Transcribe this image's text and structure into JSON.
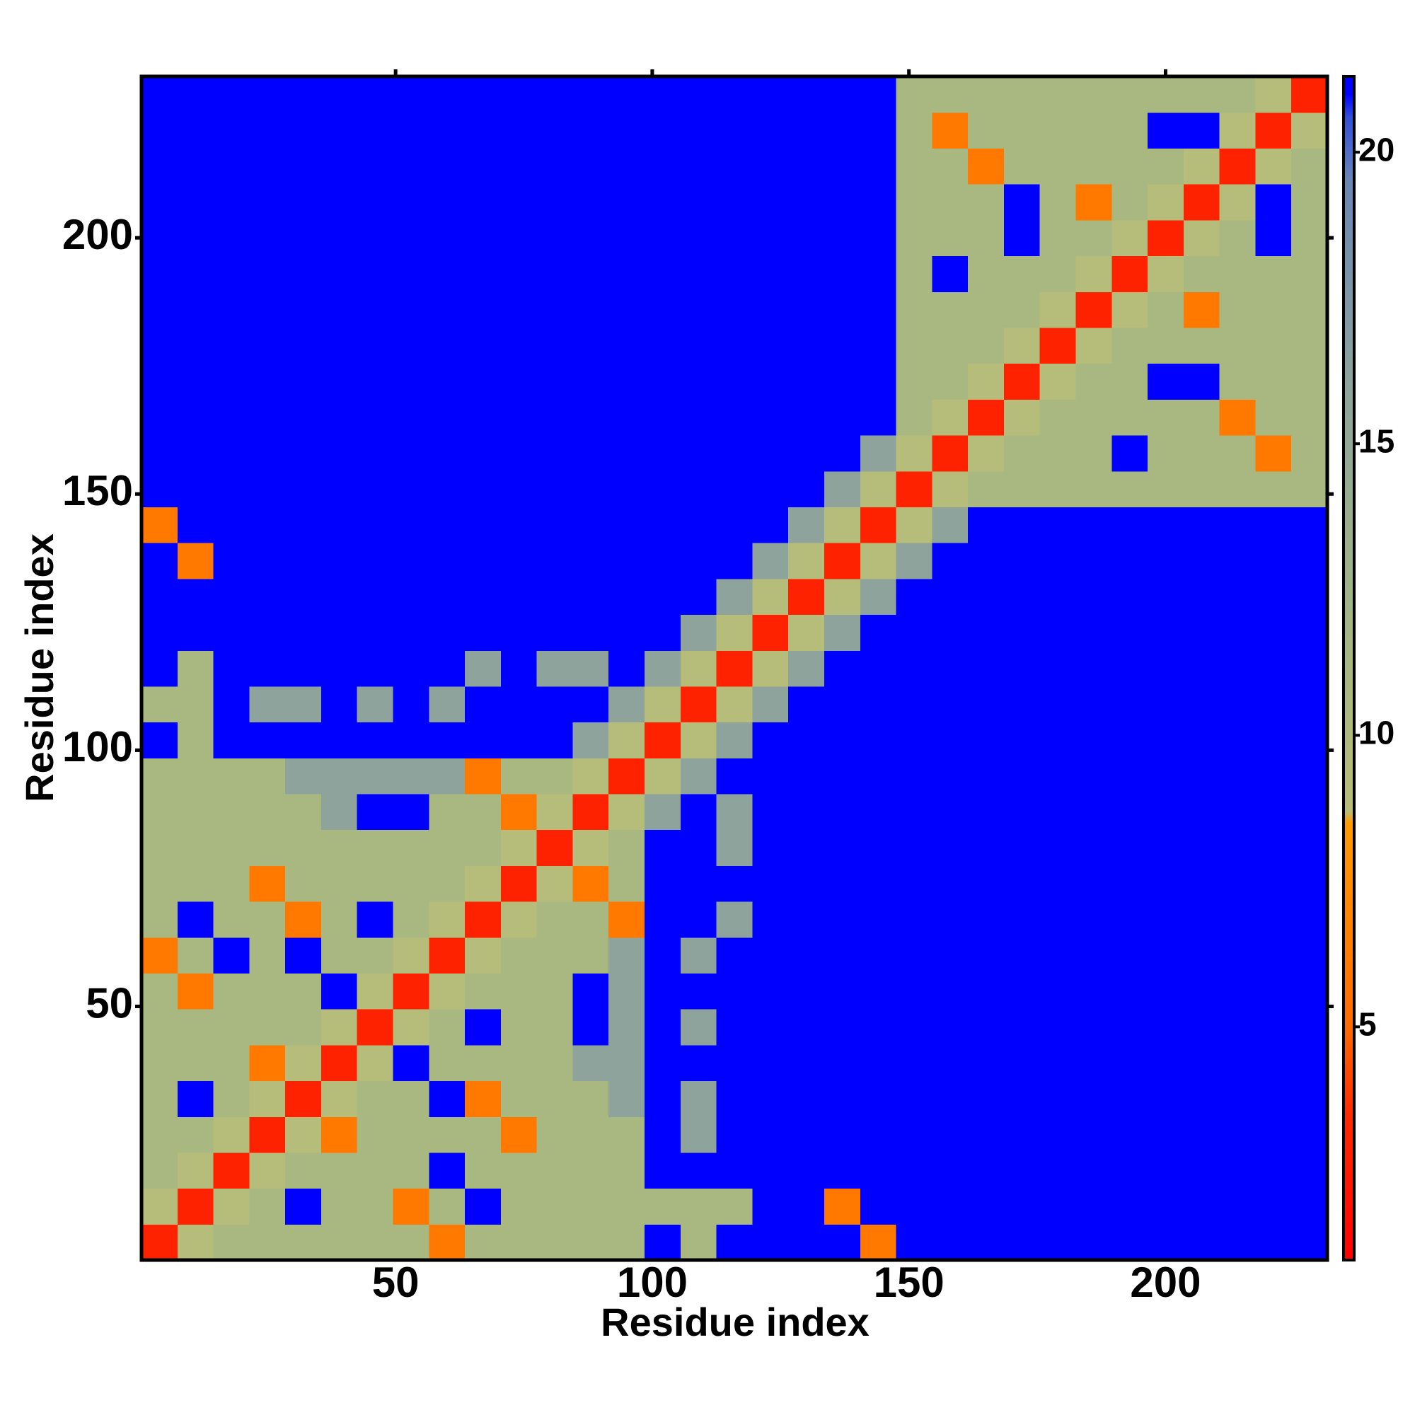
{
  "chart_data": {
    "type": "heatmap",
    "xlabel": "Residue index",
    "ylabel": "Residue index",
    "x": [
      4,
      11,
      18,
      25,
      32,
      39,
      46,
      53,
      60,
      67,
      74,
      81,
      88,
      95,
      102,
      109,
      116,
      123,
      130,
      137,
      144,
      151,
      158,
      165,
      172,
      179,
      186,
      193,
      200,
      207,
      214,
      221,
      228
    ],
    "y": [
      4,
      11,
      18,
      25,
      32,
      39,
      46,
      53,
      60,
      67,
      74,
      81,
      88,
      95,
      102,
      109,
      116,
      123,
      130,
      137,
      144,
      151,
      158,
      165,
      172,
      179,
      186,
      193,
      200,
      207,
      214,
      221,
      228
    ],
    "xlim": [
      0.5,
      231.5
    ],
    "ylim": [
      0.5,
      231.5
    ],
    "xticks": [
      50,
      100,
      150,
      200
    ],
    "yticks": [
      50,
      100,
      150,
      200
    ],
    "clim": [
      1,
      21.3
    ],
    "cticks": [
      5,
      10,
      15,
      20
    ],
    "colorscale": [
      [
        1,
        "#ff0000"
      ],
      [
        3.5,
        "#ff2a00"
      ],
      [
        5,
        "#ff6a00"
      ],
      [
        8.5,
        "#ff9a00"
      ],
      [
        8.7,
        "#b8bd78"
      ],
      [
        12,
        "#a3b684"
      ],
      [
        16,
        "#8ea39c"
      ],
      [
        19.5,
        "#6a86b4"
      ],
      [
        20.6,
        "#3050d8"
      ],
      [
        21,
        "#0000ff"
      ],
      [
        21.3,
        "#0000ff"
      ]
    ],
    "z": [
      [
        3,
        9,
        11,
        11,
        11,
        11,
        11,
        11,
        6,
        11,
        11,
        11,
        11,
        11,
        21,
        11,
        21,
        21,
        21,
        21,
        6,
        21,
        21,
        21,
        21,
        21,
        21,
        21,
        21,
        21,
        21,
        21,
        21
      ],
      [
        9,
        3,
        9,
        11,
        21,
        11,
        11,
        6,
        11,
        21,
        11,
        11,
        11,
        11,
        11,
        11,
        11,
        21,
        21,
        6,
        21,
        21,
        21,
        21,
        21,
        21,
        21,
        21,
        21,
        21,
        21,
        21,
        21
      ],
      [
        11,
        9,
        3,
        9,
        11,
        11,
        11,
        11,
        21,
        11,
        11,
        11,
        11,
        11,
        21,
        21,
        21,
        21,
        21,
        21,
        21,
        21,
        21,
        21,
        21,
        21,
        21,
        21,
        21,
        21,
        21,
        21,
        21
      ],
      [
        11,
        11,
        9,
        3,
        9,
        6,
        11,
        11,
        11,
        11,
        6,
        11,
        11,
        11,
        21,
        16,
        21,
        21,
        21,
        21,
        21,
        21,
        21,
        21,
        21,
        21,
        21,
        21,
        21,
        21,
        21,
        21,
        21
      ],
      [
        11,
        21,
        11,
        9,
        3,
        9,
        11,
        11,
        21,
        6,
        11,
        11,
        11,
        16,
        21,
        16,
        21,
        21,
        21,
        21,
        21,
        21,
        21,
        21,
        21,
        21,
        21,
        21,
        21,
        21,
        21,
        21,
        21
      ],
      [
        11,
        11,
        11,
        6,
        9,
        3,
        9,
        21,
        11,
        11,
        11,
        11,
        16,
        16,
        21,
        21,
        21,
        21,
        21,
        21,
        21,
        21,
        21,
        21,
        21,
        21,
        21,
        21,
        21,
        21,
        21,
        21,
        21
      ],
      [
        11,
        11,
        11,
        11,
        11,
        9,
        3,
        9,
        11,
        21,
        11,
        11,
        21,
        16,
        21,
        16,
        21,
        21,
        21,
        21,
        21,
        21,
        21,
        21,
        21,
        21,
        21,
        21,
        21,
        21,
        21,
        21,
        21
      ],
      [
        11,
        6,
        11,
        11,
        11,
        21,
        9,
        3,
        9,
        11,
        11,
        11,
        21,
        16,
        21,
        21,
        21,
        21,
        21,
        21,
        21,
        21,
        21,
        21,
        21,
        21,
        21,
        21,
        21,
        21,
        21,
        21,
        21
      ],
      [
        6,
        11,
        21,
        11,
        21,
        11,
        11,
        9,
        3,
        9,
        11,
        11,
        11,
        16,
        21,
        16,
        21,
        21,
        21,
        21,
        21,
        21,
        21,
        21,
        21,
        21,
        21,
        21,
        21,
        21,
        21,
        21,
        21
      ],
      [
        11,
        21,
        11,
        11,
        6,
        11,
        21,
        11,
        9,
        3,
        9,
        11,
        11,
        6,
        21,
        21,
        16,
        21,
        21,
        21,
        21,
        21,
        21,
        21,
        21,
        21,
        21,
        21,
        21,
        21,
        21,
        21,
        21
      ],
      [
        11,
        11,
        11,
        6,
        11,
        11,
        11,
        11,
        11,
        9,
        3,
        9,
        6,
        11,
        21,
        21,
        21,
        21,
        21,
        21,
        21,
        21,
        21,
        21,
        21,
        21,
        21,
        21,
        21,
        21,
        21,
        21,
        21
      ],
      [
        11,
        11,
        11,
        11,
        11,
        11,
        11,
        11,
        11,
        11,
        9,
        3,
        9,
        11,
        21,
        21,
        16,
        21,
        21,
        21,
        21,
        21,
        21,
        21,
        21,
        21,
        21,
        21,
        21,
        21,
        21,
        21,
        21
      ],
      [
        11,
        11,
        11,
        11,
        11,
        16,
        21,
        21,
        11,
        11,
        6,
        9,
        3,
        9,
        16,
        21,
        16,
        21,
        21,
        21,
        21,
        21,
        21,
        21,
        21,
        21,
        21,
        21,
        21,
        21,
        21,
        21,
        21
      ],
      [
        11,
        11,
        11,
        11,
        16,
        16,
        16,
        16,
        16,
        6,
        11,
        11,
        9,
        3,
        9,
        16,
        21,
        21,
        21,
        21,
        21,
        21,
        21,
        21,
        21,
        21,
        21,
        21,
        21,
        21,
        21,
        21,
        21
      ],
      [
        21,
        11,
        21,
        21,
        21,
        21,
        21,
        21,
        21,
        21,
        21,
        21,
        16,
        9,
        3,
        9,
        16,
        21,
        21,
        21,
        21,
        21,
        21,
        21,
        21,
        21,
        21,
        21,
        21,
        21,
        21,
        21,
        21
      ],
      [
        11,
        11,
        21,
        16,
        16,
        21,
        16,
        21,
        16,
        21,
        21,
        21,
        21,
        16,
        9,
        3,
        9,
        16,
        21,
        21,
        21,
        21,
        21,
        21,
        21,
        21,
        21,
        21,
        21,
        21,
        21,
        21,
        21
      ],
      [
        21,
        11,
        21,
        21,
        21,
        21,
        21,
        21,
        21,
        16,
        21,
        16,
        16,
        21,
        16,
        9,
        3,
        9,
        16,
        21,
        21,
        21,
        21,
        21,
        21,
        21,
        21,
        21,
        21,
        21,
        21,
        21,
        21
      ],
      [
        21,
        21,
        21,
        21,
        21,
        21,
        21,
        21,
        21,
        21,
        21,
        21,
        21,
        21,
        21,
        16,
        9,
        3,
        9,
        16,
        21,
        21,
        21,
        21,
        21,
        21,
        21,
        21,
        21,
        21,
        21,
        21,
        21
      ],
      [
        21,
        21,
        21,
        21,
        21,
        21,
        21,
        21,
        21,
        21,
        21,
        21,
        21,
        21,
        21,
        21,
        16,
        9,
        3,
        9,
        16,
        21,
        21,
        21,
        21,
        21,
        21,
        21,
        21,
        21,
        21,
        21,
        21
      ],
      [
        21,
        6,
        21,
        21,
        21,
        21,
        21,
        21,
        21,
        21,
        21,
        21,
        21,
        21,
        21,
        21,
        21,
        16,
        9,
        3,
        9,
        16,
        21,
        21,
        21,
        21,
        21,
        21,
        21,
        21,
        21,
        21,
        21
      ],
      [
        6,
        21,
        21,
        21,
        21,
        21,
        21,
        21,
        21,
        21,
        21,
        21,
        21,
        21,
        21,
        21,
        21,
        21,
        16,
        9,
        3,
        9,
        16,
        21,
        21,
        21,
        21,
        21,
        21,
        21,
        21,
        21,
        21
      ],
      [
        21,
        21,
        21,
        21,
        21,
        21,
        21,
        21,
        21,
        21,
        21,
        21,
        21,
        21,
        21,
        21,
        21,
        21,
        21,
        16,
        9,
        3,
        9,
        11,
        11,
        11,
        11,
        11,
        11,
        11,
        11,
        11,
        11
      ],
      [
        21,
        21,
        21,
        21,
        21,
        21,
        21,
        21,
        21,
        21,
        21,
        21,
        21,
        21,
        21,
        21,
        21,
        21,
        21,
        21,
        16,
        9,
        3,
        9,
        11,
        11,
        11,
        21,
        11,
        11,
        11,
        6,
        11
      ],
      [
        21,
        21,
        21,
        21,
        21,
        21,
        21,
        21,
        21,
        21,
        21,
        21,
        21,
        21,
        21,
        21,
        21,
        21,
        21,
        21,
        21,
        11,
        9,
        3,
        9,
        11,
        11,
        11,
        11,
        11,
        6,
        11,
        11
      ],
      [
        21,
        21,
        21,
        21,
        21,
        21,
        21,
        21,
        21,
        21,
        21,
        21,
        21,
        21,
        21,
        21,
        21,
        21,
        21,
        21,
        21,
        11,
        11,
        9,
        3,
        9,
        11,
        11,
        21,
        21,
        11,
        11,
        11
      ],
      [
        21,
        21,
        21,
        21,
        21,
        21,
        21,
        21,
        21,
        21,
        21,
        21,
        21,
        21,
        21,
        21,
        21,
        21,
        21,
        21,
        21,
        11,
        11,
        11,
        9,
        3,
        9,
        11,
        11,
        11,
        11,
        11,
        11
      ],
      [
        21,
        21,
        21,
        21,
        21,
        21,
        21,
        21,
        21,
        21,
        21,
        21,
        21,
        21,
        21,
        21,
        21,
        21,
        21,
        21,
        21,
        11,
        11,
        11,
        11,
        9,
        3,
        9,
        11,
        6,
        11,
        11,
        11
      ],
      [
        21,
        21,
        21,
        21,
        21,
        21,
        21,
        21,
        21,
        21,
        21,
        21,
        21,
        21,
        21,
        21,
        21,
        21,
        21,
        21,
        21,
        11,
        21,
        11,
        11,
        11,
        9,
        3,
        9,
        11,
        11,
        11,
        11
      ],
      [
        21,
        21,
        21,
        21,
        21,
        21,
        21,
        21,
        21,
        21,
        21,
        21,
        21,
        21,
        21,
        21,
        21,
        21,
        21,
        21,
        21,
        11,
        11,
        11,
        21,
        11,
        11,
        9,
        3,
        9,
        11,
        21,
        11
      ],
      [
        21,
        21,
        21,
        21,
        21,
        21,
        21,
        21,
        21,
        21,
        21,
        21,
        21,
        21,
        21,
        21,
        21,
        21,
        21,
        21,
        21,
        11,
        11,
        11,
        21,
        11,
        6,
        11,
        9,
        3,
        9,
        21,
        11
      ],
      [
        21,
        21,
        21,
        21,
        21,
        21,
        21,
        21,
        21,
        21,
        21,
        21,
        21,
        21,
        21,
        21,
        21,
        21,
        21,
        21,
        21,
        11,
        11,
        6,
        11,
        11,
        11,
        11,
        11,
        9,
        3,
        9,
        11
      ],
      [
        21,
        21,
        21,
        21,
        21,
        21,
        21,
        21,
        21,
        21,
        21,
        21,
        21,
        21,
        21,
        21,
        21,
        21,
        21,
        21,
        21,
        11,
        6,
        11,
        11,
        11,
        11,
        11,
        21,
        21,
        9,
        3,
        9
      ],
      [
        21,
        21,
        21,
        21,
        21,
        21,
        21,
        21,
        21,
        21,
        21,
        21,
        21,
        21,
        21,
        21,
        21,
        21,
        21,
        21,
        21,
        11,
        11,
        11,
        11,
        11,
        11,
        11,
        11,
        11,
        11,
        9,
        3
      ]
    ]
  }
}
